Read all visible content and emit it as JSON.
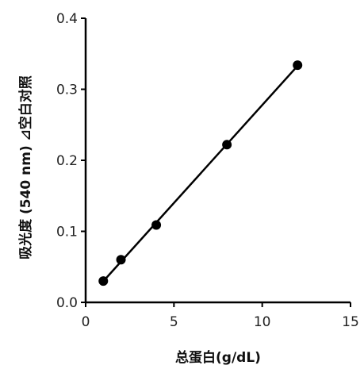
{
  "chart_data": {
    "type": "scatter",
    "title": "",
    "xlabel": "总蛋白(g/dL)",
    "ylabel": "吸光度 (540 nm) ⊿空白对照",
    "xlim": [
      0,
      15
    ],
    "ylim": [
      0,
      0.4
    ],
    "x_ticks": [
      0,
      5,
      10,
      15
    ],
    "y_ticks": [
      0.0,
      0.1,
      0.2,
      0.3,
      0.4
    ],
    "x_tick_labels": [
      "0",
      "5",
      "10",
      "15"
    ],
    "y_tick_labels": [
      "0.0",
      "0.1",
      "0.2",
      "0.3",
      "0.4"
    ],
    "grid": false,
    "legend": "none",
    "series": [
      {
        "x": [
          1,
          2,
          4,
          8,
          12
        ],
        "y": [
          0.03,
          0.06,
          0.109,
          0.222,
          0.334
        ],
        "marker": "filled-circle",
        "color": "#000000"
      }
    ],
    "trendline": {
      "type": "linear",
      "x_range": [
        1,
        12
      ],
      "color": "#000000"
    }
  }
}
